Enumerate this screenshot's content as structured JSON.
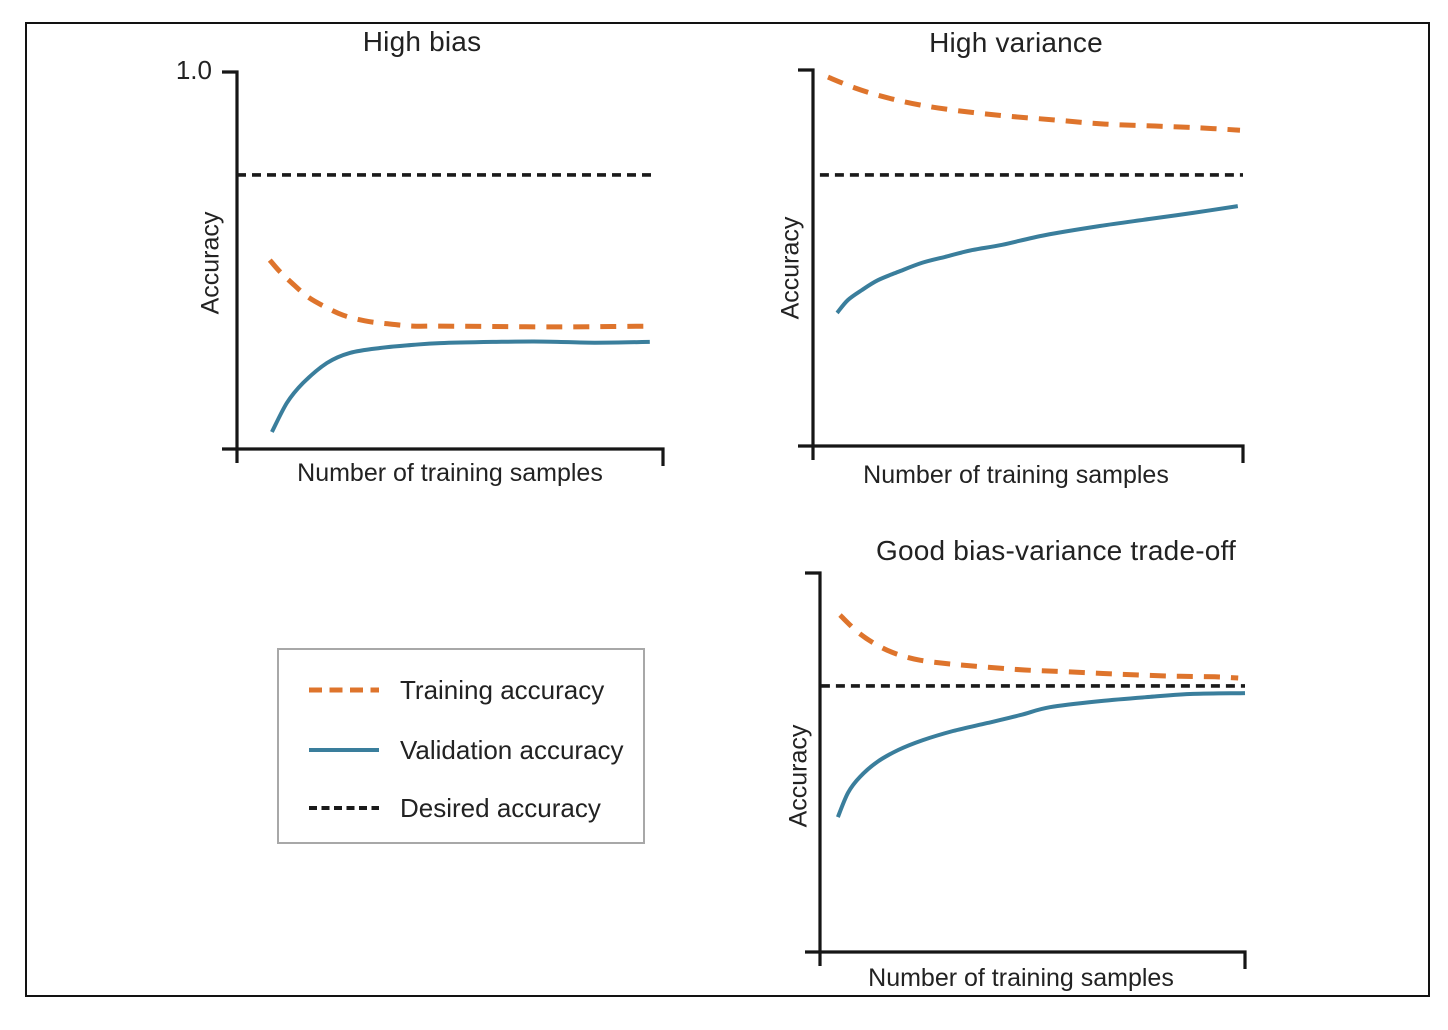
{
  "colors": {
    "training": "#DE742C",
    "validation": "#3A7E9C",
    "desired": "#1A1A1A",
    "axis": "#161616"
  },
  "legend": {
    "items": [
      {
        "id": "training",
        "label": "Training accuracy"
      },
      {
        "id": "validation",
        "label": "Validation accuracy"
      },
      {
        "id": "desired",
        "label": "Desired accuracy"
      }
    ]
  },
  "chart_data": {
    "type": "line",
    "description": "Learning curves of model accuracy versus number of training samples for three bias/variance regimes",
    "ylim": [
      0,
      1.0
    ],
    "grid": false,
    "charts": [
      {
        "id": "high-bias",
        "title": "High bias",
        "xlabel": "Number of training samples",
        "ylabel": "Accuracy",
        "ytick_top": "1.0",
        "desired_accuracy": 0.727,
        "series": [
          {
            "name": "Training accuracy",
            "style": "dashed",
            "color_key": "training",
            "points": [
              [
                0.077,
                0.501
              ],
              [
                0.101,
                0.47
              ],
              [
                0.129,
                0.44
              ],
              [
                0.167,
                0.403
              ],
              [
                0.207,
                0.377
              ],
              [
                0.249,
                0.355
              ],
              [
                0.3,
                0.34
              ],
              [
                0.354,
                0.332
              ],
              [
                0.413,
                0.326
              ],
              [
                0.477,
                0.326
              ],
              [
                0.6,
                0.325
              ],
              [
                0.75,
                0.324
              ],
              [
                0.88,
                0.325
              ],
              [
                0.974,
                0.326
              ]
            ]
          },
          {
            "name": "Validation accuracy",
            "style": "solid",
            "color_key": "validation",
            "points": [
              [
                0.082,
                0.045
              ],
              [
                0.117,
                0.122
              ],
              [
                0.155,
                0.175
              ],
              [
                0.211,
                0.228
              ],
              [
                0.265,
                0.255
              ],
              [
                0.336,
                0.268
              ],
              [
                0.413,
                0.276
              ],
              [
                0.477,
                0.281
              ],
              [
                0.6,
                0.284
              ],
              [
                0.72,
                0.285
              ],
              [
                0.84,
                0.282
              ],
              [
                0.969,
                0.284
              ]
            ]
          }
        ]
      },
      {
        "id": "high-variance",
        "title": "High variance",
        "xlabel": "Number of training samples",
        "ylabel": "Accuracy",
        "ytick_top": "",
        "desired_accuracy": 0.721,
        "series": [
          {
            "name": "Training accuracy",
            "style": "dashed",
            "color_key": "training",
            "points": [
              [
                0.035,
                0.981
              ],
              [
                0.098,
                0.952
              ],
              [
                0.167,
                0.928
              ],
              [
                0.249,
                0.907
              ],
              [
                0.342,
                0.891
              ],
              [
                0.447,
                0.878
              ],
              [
                0.563,
                0.867
              ],
              [
                0.679,
                0.856
              ],
              [
                0.795,
                0.851
              ],
              [
                0.9,
                0.846
              ],
              [
                0.993,
                0.84
              ]
            ]
          },
          {
            "name": "Validation accuracy",
            "style": "solid",
            "color_key": "validation",
            "points": [
              [
                0.056,
                0.354
              ],
              [
                0.081,
                0.388
              ],
              [
                0.114,
                0.415
              ],
              [
                0.151,
                0.441
              ],
              [
                0.198,
                0.463
              ],
              [
                0.253,
                0.487
              ],
              [
                0.307,
                0.503
              ],
              [
                0.37,
                0.521
              ],
              [
                0.44,
                0.535
              ],
              [
                0.54,
                0.561
              ],
              [
                0.667,
                0.585
              ],
              [
                0.784,
                0.604
              ],
              [
                0.884,
                0.62
              ],
              [
                0.988,
                0.638
              ]
            ]
          }
        ]
      },
      {
        "id": "good-tradeoff",
        "title": "Good bias-variance trade-off",
        "xlabel": "Number of training samples",
        "ylabel": "Accuracy",
        "ytick_top": "",
        "desired_accuracy": 0.702,
        "series": [
          {
            "name": "Training accuracy",
            "style": "dashed",
            "color_key": "training",
            "points": [
              [
                0.047,
                0.889
              ],
              [
                0.089,
                0.844
              ],
              [
                0.134,
                0.81
              ],
              [
                0.181,
                0.786
              ],
              [
                0.235,
                0.77
              ],
              [
                0.306,
                0.76
              ],
              [
                0.388,
                0.752
              ],
              [
                0.482,
                0.744
              ],
              [
                0.588,
                0.739
              ],
              [
                0.706,
                0.733
              ],
              [
                0.824,
                0.728
              ],
              [
                0.929,
                0.726
              ],
              [
                0.984,
                0.723
              ]
            ]
          },
          {
            "name": "Validation accuracy",
            "style": "solid",
            "color_key": "validation",
            "points": [
              [
                0.042,
                0.356
              ],
              [
                0.066,
                0.42
              ],
              [
                0.094,
                0.462
              ],
              [
                0.134,
                0.501
              ],
              [
                0.184,
                0.533
              ],
              [
                0.242,
                0.559
              ],
              [
                0.313,
                0.583
              ],
              [
                0.393,
                0.604
              ],
              [
                0.471,
                0.625
              ],
              [
                0.541,
                0.646
              ],
              [
                0.659,
                0.662
              ],
              [
                0.776,
                0.673
              ],
              [
                0.878,
                0.681
              ],
              [
                1.0,
                0.683
              ]
            ]
          }
        ]
      }
    ]
  }
}
